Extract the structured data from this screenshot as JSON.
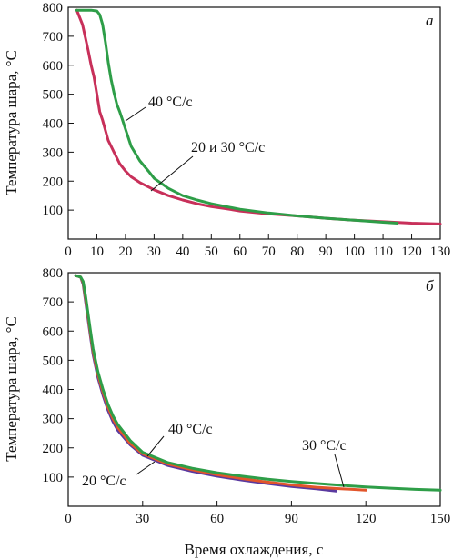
{
  "chart_data": [
    {
      "type": "line",
      "panel_label": "a",
      "ylabel": "Температура шара, °C",
      "xlabel": "",
      "xlim": [
        0,
        130
      ],
      "ylim": [
        0,
        800
      ],
      "x_ticks": [
        0,
        10,
        20,
        30,
        40,
        50,
        60,
        70,
        80,
        90,
        100,
        110,
        120,
        130
      ],
      "y_ticks": [
        100,
        200,
        300,
        400,
        500,
        600,
        700,
        800
      ],
      "grid": false,
      "series": [
        {
          "color": "#c8305a",
          "x": [
            3,
            5,
            7,
            8,
            9,
            10,
            11,
            12,
            13,
            14,
            15,
            16,
            17,
            18,
            20,
            22,
            25,
            28,
            30,
            35,
            40,
            45,
            50,
            55,
            60,
            70,
            80,
            90,
            100,
            110,
            120,
            130
          ],
          "y": [
            790,
            740,
            650,
            600,
            560,
            500,
            440,
            410,
            375,
            340,
            320,
            300,
            280,
            260,
            235,
            215,
            195,
            180,
            170,
            150,
            135,
            122,
            112,
            105,
            97,
            87,
            80,
            72,
            65,
            60,
            55,
            52
          ]
        },
        {
          "color": "#2e9e48",
          "x": [
            3,
            8,
            10,
            11,
            12,
            13,
            14,
            15,
            16,
            17,
            18,
            19,
            20,
            22,
            25,
            28,
            30,
            35,
            40,
            45,
            50,
            60,
            70,
            80,
            90,
            100,
            110,
            115
          ],
          "y": [
            790,
            790,
            787,
            775,
            740,
            680,
            610,
            550,
            505,
            465,
            440,
            410,
            380,
            320,
            270,
            235,
            210,
            175,
            150,
            135,
            122,
            103,
            90,
            80,
            72,
            65,
            58,
            55
          ]
        }
      ],
      "annotations": [
        "40 °C/c",
        "20 и 30 °C/c"
      ]
    },
    {
      "type": "line",
      "panel_label": "б",
      "ylabel": "Температура шара, °C",
      "xlabel": "Время охлаждения, с",
      "xlim": [
        0,
        150
      ],
      "ylim": [
        0,
        800
      ],
      "x_ticks": [
        0,
        30,
        60,
        90,
        120,
        150
      ],
      "y_ticks": [
        100,
        200,
        300,
        400,
        500,
        600,
        700,
        800
      ],
      "grid": false,
      "series": [
        {
          "color": "#5a3aa0",
          "x": [
            3,
            5,
            6,
            7,
            8,
            9,
            10,
            12,
            14,
            16,
            18,
            20,
            25,
            30,
            40,
            50,
            60,
            70,
            80,
            90,
            100,
            108
          ],
          "y": [
            790,
            785,
            760,
            700,
            640,
            580,
            520,
            440,
            380,
            330,
            290,
            260,
            210,
            175,
            140,
            120,
            103,
            90,
            78,
            68,
            60,
            52
          ]
        },
        {
          "color": "#e2552b",
          "x": [
            3,
            5,
            6,
            7,
            8,
            9,
            10,
            12,
            14,
            16,
            18,
            20,
            25,
            30,
            40,
            50,
            60,
            70,
            80,
            90,
            100,
            110,
            120
          ],
          "y": [
            790,
            785,
            765,
            710,
            650,
            590,
            530,
            450,
            390,
            340,
            300,
            270,
            215,
            180,
            145,
            125,
            108,
            95,
            83,
            73,
            65,
            60,
            55
          ]
        },
        {
          "color": "#2e9e48",
          "x": [
            3,
            5,
            6,
            7,
            8,
            9,
            10,
            12,
            14,
            16,
            18,
            20,
            25,
            30,
            40,
            50,
            60,
            70,
            80,
            90,
            100,
            110,
            120,
            130,
            140,
            150
          ],
          "y": [
            790,
            785,
            770,
            720,
            660,
            600,
            540,
            460,
            400,
            350,
            310,
            280,
            225,
            185,
            150,
            130,
            115,
            103,
            93,
            85,
            78,
            72,
            66,
            62,
            58,
            55
          ]
        }
      ],
      "annotations": [
        "40 °C/c",
        "30 °C/c",
        "20 °C/c"
      ]
    }
  ]
}
